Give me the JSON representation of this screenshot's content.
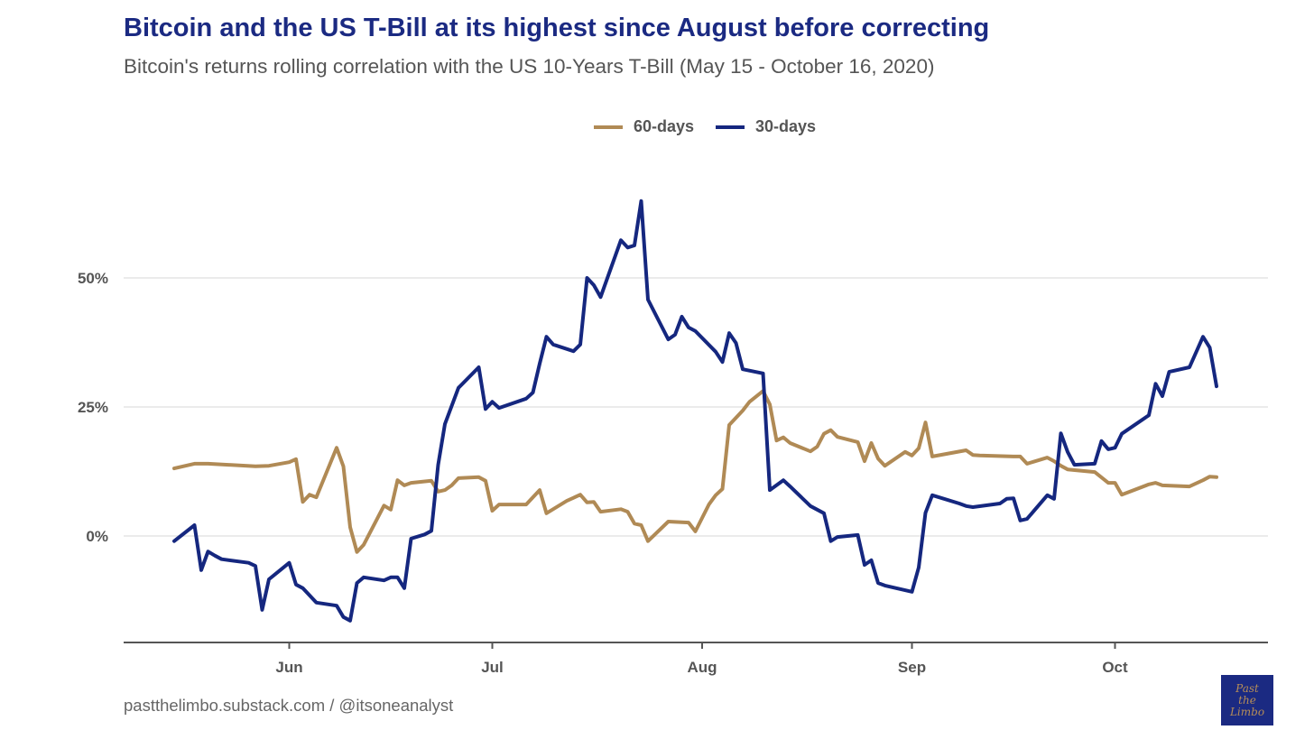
{
  "header": {
    "title": "Bitcoin and the US T-Bill at its highest since August before correcting",
    "subtitle": "Bitcoin's returns rolling correlation with the US 10-Years T-Bill (May 15 - October 16, 2020)"
  },
  "footer": {
    "source": "pastthelimbo.substack.com / @itsoneanalyst",
    "logo_text": "Past the Limbo"
  },
  "colors": {
    "60-days": "#b08a55",
    "30-days": "#15277f",
    "grid": "#ebebeb",
    "axis": "#555555"
  },
  "chart_data": {
    "type": "line",
    "title": "Bitcoin and the US T-Bill at its highest since August before correcting",
    "xlabel": "",
    "ylabel": "",
    "x_unit": "days since May 15, 2020",
    "xlim": [
      0,
      154
    ],
    "ylim": [
      -20,
      67
    ],
    "legend_position": "top-center",
    "grid": "horizontal",
    "x_ticks": [
      {
        "day": 17,
        "label": "Jun"
      },
      {
        "day": 47,
        "label": "Jul"
      },
      {
        "day": 78,
        "label": "Aug"
      },
      {
        "day": 109,
        "label": "Sep"
      },
      {
        "day": 139,
        "label": "Oct"
      }
    ],
    "y_ticks": [
      {
        "value": 0,
        "label": "0%"
      },
      {
        "value": 25,
        "label": "25%"
      },
      {
        "value": 50,
        "label": "50%"
      }
    ],
    "series": [
      {
        "name": "60-days",
        "x": [
          0,
          3,
          5,
          8,
          12,
          14,
          17,
          18,
          19,
          20,
          21,
          24,
          25,
          26,
          27,
          28,
          31,
          32,
          33,
          34,
          35,
          38,
          39,
          40,
          41,
          42,
          45,
          46,
          47,
          48,
          51,
          52,
          54,
          55,
          58,
          60,
          61,
          62,
          63,
          66,
          67,
          68,
          69,
          70,
          73,
          76,
          77,
          79,
          80,
          81,
          82,
          84,
          85,
          87,
          88,
          89,
          90,
          91,
          94,
          95,
          96,
          97,
          98,
          101,
          102,
          103,
          104,
          105,
          108,
          109,
          110,
          111,
          112,
          117,
          118,
          119,
          124,
          125,
          126,
          129,
          130,
          131,
          132,
          136,
          138,
          139,
          140,
          144,
          145,
          146,
          150,
          152,
          153,
          154
        ],
        "values": [
          13.1,
          14.0,
          14.0,
          13.8,
          13.5,
          13.6,
          14.3,
          14.9,
          6.6,
          8.0,
          7.5,
          17.1,
          13.5,
          1.7,
          -3.1,
          -1.7,
          5.9,
          5.1,
          10.8,
          9.8,
          10.3,
          10.7,
          8.6,
          8.9,
          9.8,
          11.2,
          11.4,
          10.7,
          4.9,
          6.1,
          6.1,
          6.1,
          8.9,
          4.4,
          6.8,
          8.0,
          6.5,
          6.6,
          4.7,
          5.2,
          4.7,
          2.4,
          2.1,
          -1.0,
          2.8,
          2.6,
          0.9,
          6.1,
          7.9,
          9.1,
          21.5,
          24.3,
          26.0,
          28.1,
          25.5,
          18.5,
          19.1,
          18.0,
          16.4,
          17.3,
          19.8,
          20.5,
          19.2,
          18.2,
          14.5,
          18.0,
          15.0,
          13.6,
          16.3,
          15.6,
          17.0,
          22.0,
          15.4,
          16.6,
          15.7,
          15.6,
          15.4,
          15.4,
          14.0,
          15.2,
          14.5,
          13.6,
          12.9,
          12.4,
          10.3,
          10.3,
          8.0,
          10.0,
          10.3,
          9.8,
          9.6,
          10.8,
          11.5,
          11.4
        ]
      },
      {
        "name": "30-days",
        "x": [
          0,
          3,
          4,
          5,
          6,
          7,
          11,
          12,
          13,
          14,
          17,
          18,
          19,
          21,
          24,
          25,
          26,
          27,
          28,
          31,
          32,
          33,
          34,
          35,
          37,
          38,
          39,
          40,
          42,
          45,
          46,
          47,
          48,
          52,
          53,
          54,
          55,
          56,
          59,
          60,
          61,
          62,
          63,
          66,
          67,
          68,
          69,
          70,
          73,
          74,
          75,
          76,
          77,
          80,
          81,
          82,
          83,
          84,
          87,
          88,
          90,
          91,
          94,
          96,
          97,
          98,
          101,
          102,
          103,
          104,
          105,
          109,
          110,
          111,
          112,
          116,
          117,
          118,
          122,
          123,
          124,
          125,
          126,
          129,
          130,
          131,
          132,
          133,
          136,
          137,
          138,
          139,
          140,
          144,
          145,
          146,
          147,
          150,
          152,
          153,
          154
        ],
        "values": [
          -1.0,
          2.1,
          -6.6,
          -3.0,
          -3.8,
          -4.5,
          -5.2,
          -5.8,
          -14.3,
          -8.4,
          -5.2,
          -9.4,
          -10.1,
          -12.9,
          -13.5,
          -15.7,
          -16.4,
          -9.1,
          -8.0,
          -8.6,
          -8.0,
          -8.0,
          -10.1,
          -0.5,
          0.3,
          1.0,
          13.8,
          21.7,
          28.7,
          32.7,
          24.6,
          26.0,
          24.8,
          26.6,
          27.8,
          33.4,
          38.6,
          37.1,
          35.8,
          37.1,
          50.0,
          48.6,
          46.3,
          57.3,
          55.9,
          56.3,
          64.9,
          45.8,
          38.1,
          39.0,
          42.5,
          40.4,
          39.7,
          35.7,
          33.7,
          39.3,
          37.4,
          32.3,
          31.5,
          8.9,
          10.8,
          9.6,
          5.8,
          4.4,
          -1.0,
          -0.2,
          0.2,
          -5.6,
          -4.7,
          -9.1,
          -9.6,
          -10.8,
          -6.1,
          4.5,
          7.9,
          6.3,
          5.8,
          5.6,
          6.3,
          7.2,
          7.3,
          3.0,
          3.3,
          7.9,
          7.2,
          19.9,
          16.3,
          13.8,
          14.0,
          18.4,
          16.8,
          17.1,
          19.8,
          23.4,
          29.5,
          27.1,
          31.8,
          32.7,
          38.6,
          36.5,
          29.0
        ]
      }
    ]
  }
}
